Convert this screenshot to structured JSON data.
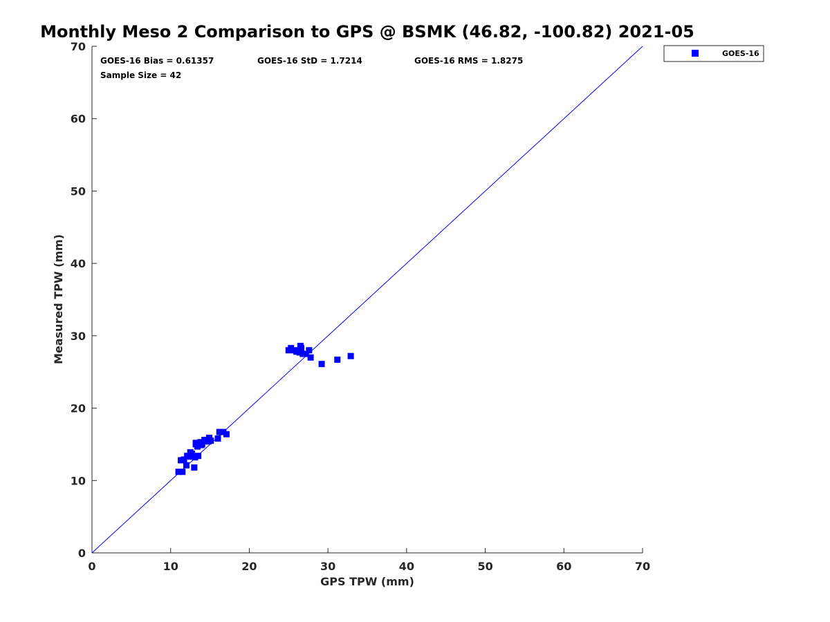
{
  "chart_data": {
    "type": "scatter",
    "title": "Monthly Meso 2 Comparison to GPS @ BSMK (46.82, -100.82) 2021-05",
    "xlabel": "GPS TPW (mm)",
    "ylabel": "Measured TPW (mm)",
    "xlim": [
      0,
      70
    ],
    "ylim": [
      0,
      70
    ],
    "xticks": [
      "0",
      "10",
      "20",
      "30",
      "40",
      "50",
      "60",
      "70"
    ],
    "yticks": [
      "0",
      "10",
      "20",
      "30",
      "40",
      "50",
      "60",
      "70"
    ],
    "grid": false,
    "legend_position": "outside-top-right",
    "reference_line": {
      "from": [
        0,
        0
      ],
      "to": [
        70,
        70
      ],
      "color": "#0000ff"
    },
    "stats": {
      "bias": "GOES-16 Bias = 0.61357",
      "std": "GOES-16 StD = 1.7214",
      "rms": "GOES-16 RMS = 1.8275",
      "sample": "Sample Size = 42"
    },
    "series": [
      {
        "name": "GOES-16",
        "color": "#0000ff",
        "marker": "square",
        "x": [
          11.0,
          11.5,
          11.3,
          11.7,
          12.0,
          12.1,
          12.5,
          12.7,
          13.0,
          13.1,
          13.2,
          13.4,
          13.5,
          13.8,
          14.0,
          14.3,
          14.6,
          14.9,
          15.1,
          16.0,
          16.2,
          16.7,
          17.1,
          25.0,
          25.3,
          25.7,
          26.0,
          26.3,
          26.5,
          26.6,
          26.8,
          27.2,
          27.6,
          27.8,
          29.2,
          31.2,
          32.9,
          12.5,
          13.2,
          13.9,
          14.8,
          26.4
        ],
        "y": [
          11.2,
          11.2,
          12.8,
          12.9,
          12.1,
          13.4,
          13.3,
          13.7,
          11.8,
          13.2,
          15.0,
          14.7,
          13.4,
          15.3,
          15.0,
          15.6,
          15.6,
          15.9,
          15.5,
          15.8,
          16.7,
          16.7,
          16.4,
          28.0,
          28.3,
          28.0,
          27.8,
          28.0,
          28.6,
          28.3,
          27.5,
          27.5,
          28.0,
          27.0,
          26.1,
          26.7,
          27.2,
          13.9,
          15.2,
          14.9,
          15.4,
          27.7
        ]
      }
    ]
  }
}
